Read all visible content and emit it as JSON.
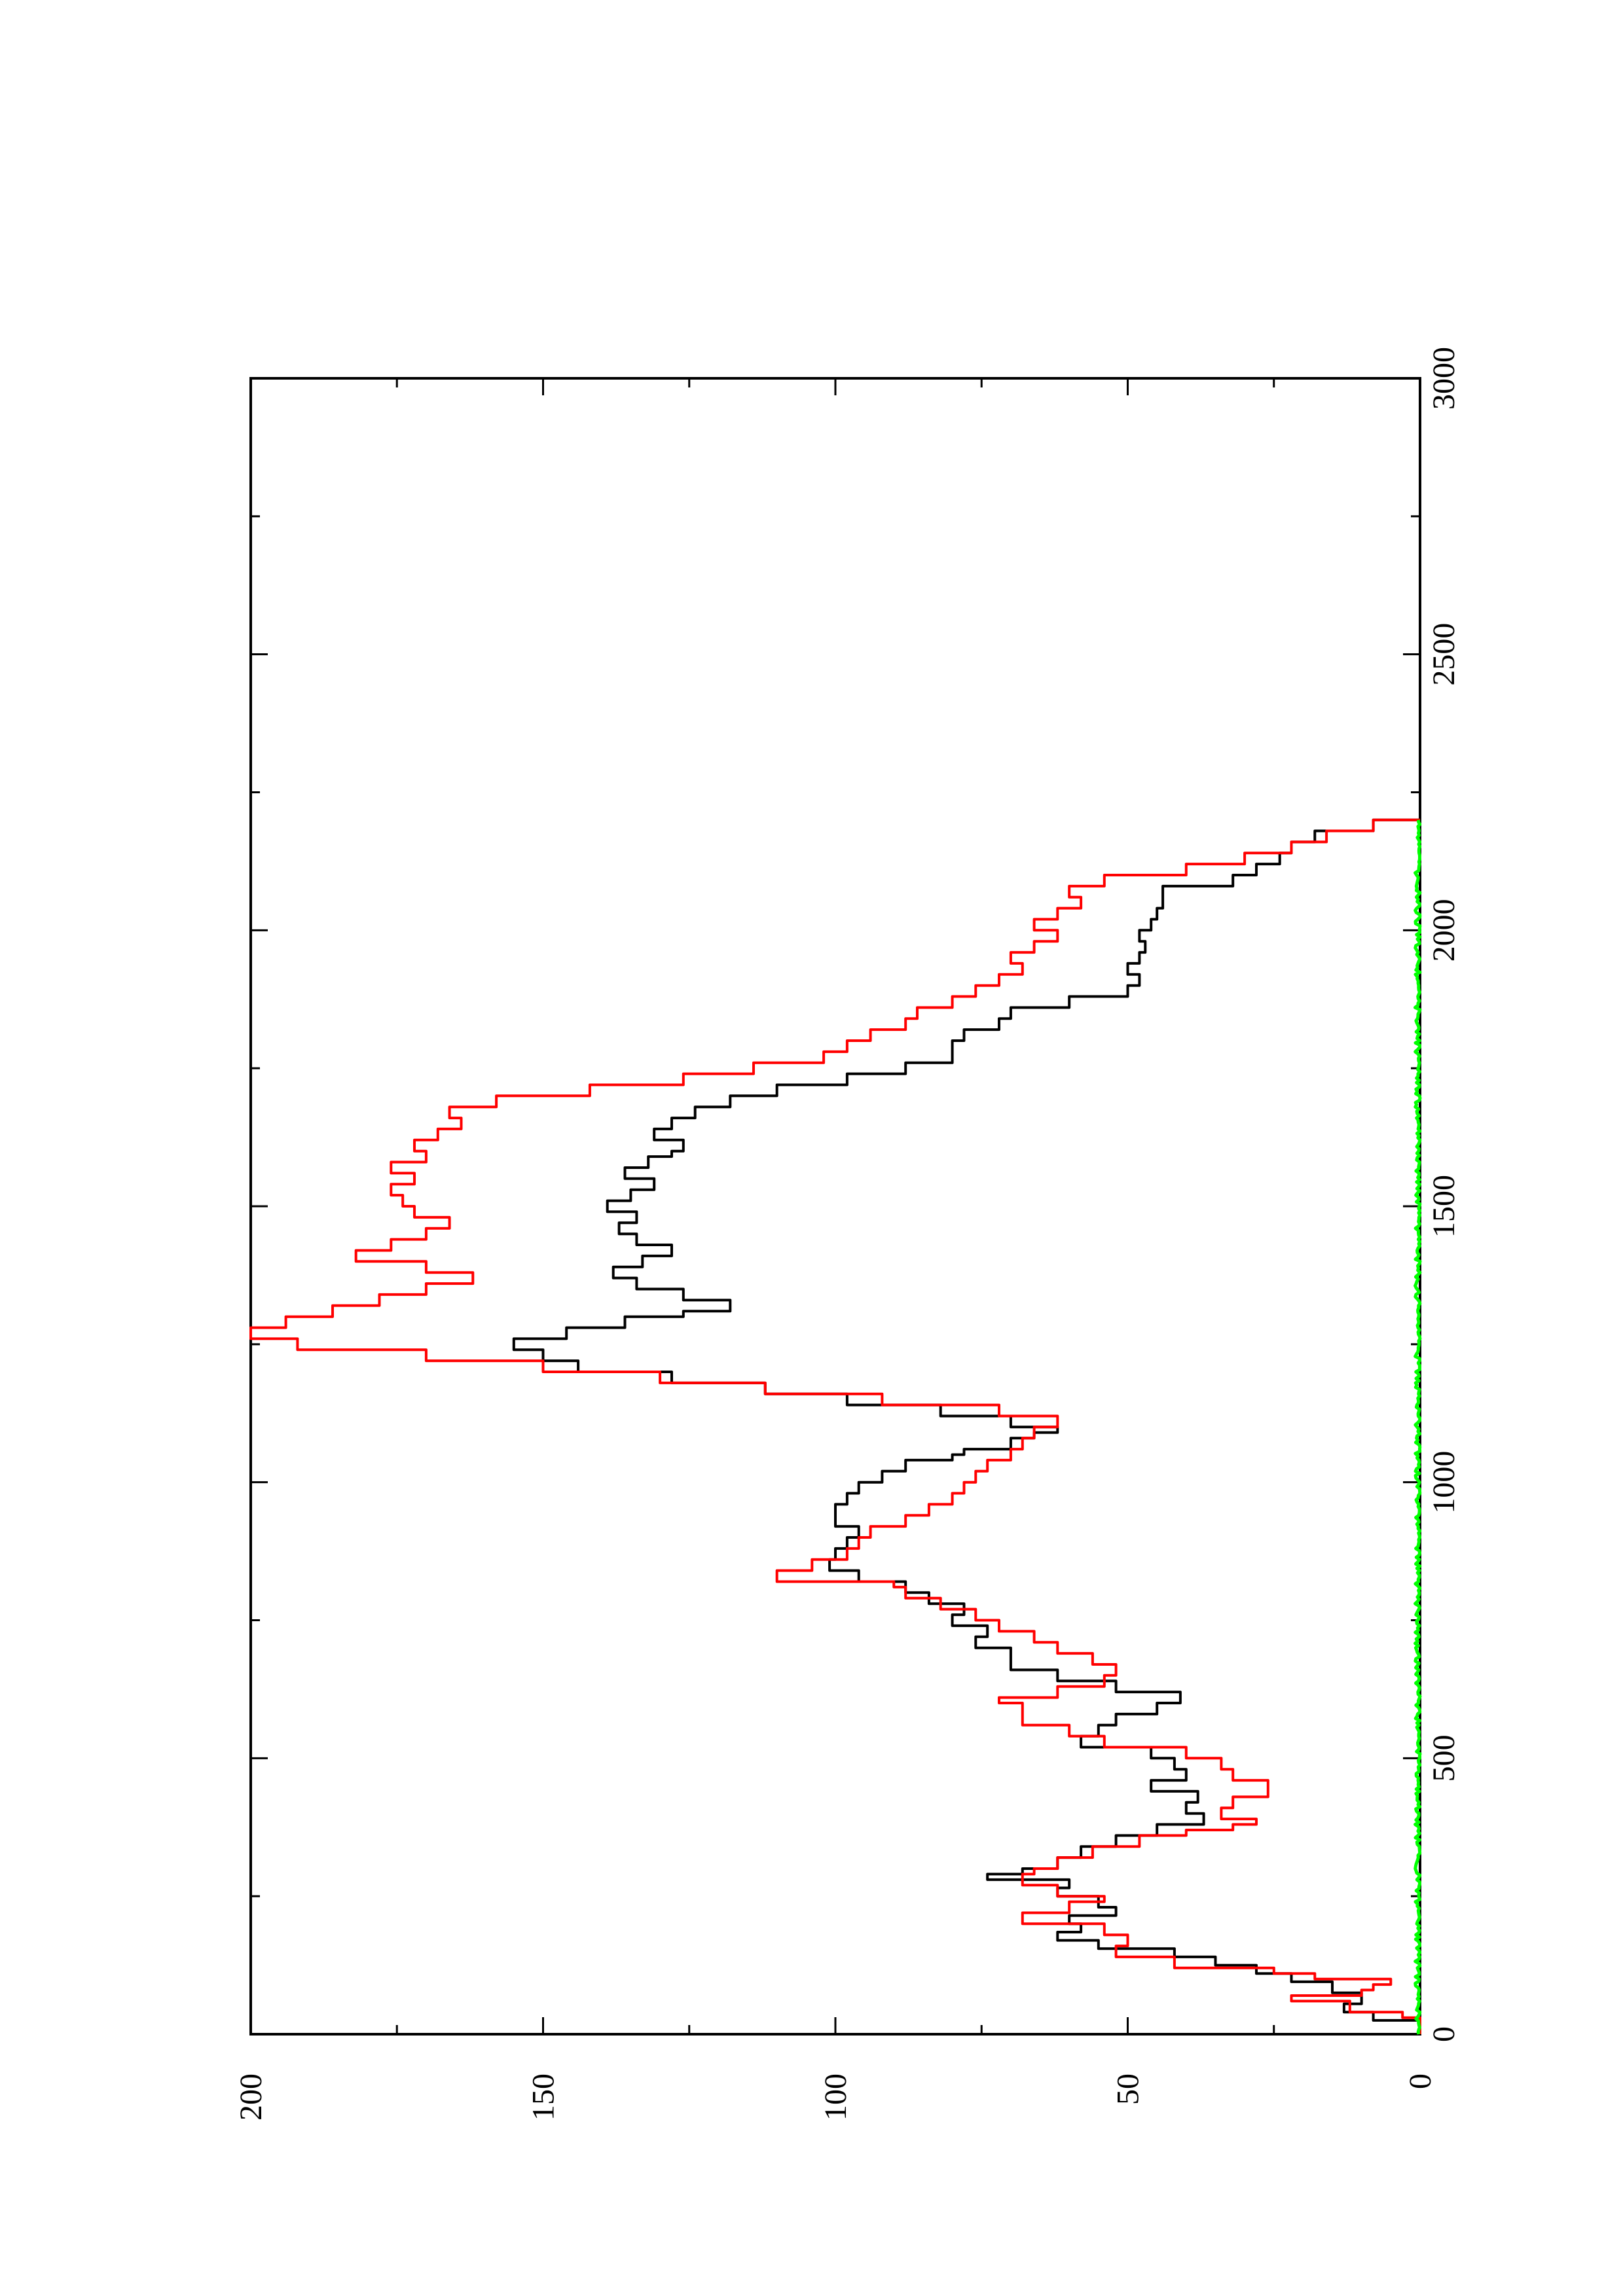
{
  "chart_data": {
    "type": "line",
    "orientation": "rotated-90-ccw",
    "title": "",
    "xlabel": "",
    "ylabel": "",
    "xlim": [
      0,
      3000
    ],
    "ylim": [
      0,
      200
    ],
    "x_ticks": [
      0,
      500,
      1000,
      1500,
      2000,
      2500,
      3000
    ],
    "x_tick_labels": [
      "0",
      "500",
      "1000",
      "1500",
      "2000",
      "2500",
      "3000"
    ],
    "y_ticks": [
      0,
      50,
      100,
      150,
      200
    ],
    "y_tick_labels": [
      "0",
      "50",
      "100",
      "150",
      "200"
    ],
    "grid": false,
    "legend": "none",
    "series": [
      {
        "color": "#000000",
        "points": [
          [
            0,
            0
          ],
          [
            25,
            8
          ],
          [
            40,
            13
          ],
          [
            55,
            10
          ],
          [
            75,
            15
          ],
          [
            95,
            22
          ],
          [
            110,
            28
          ],
          [
            125,
            35
          ],
          [
            140,
            42
          ],
          [
            155,
            55
          ],
          [
            170,
            62
          ],
          [
            185,
            58
          ],
          [
            200,
            60
          ],
          [
            215,
            52
          ],
          [
            230,
            55
          ],
          [
            250,
            62
          ],
          [
            265,
            60
          ],
          [
            280,
            74
          ],
          [
            290,
            68
          ],
          [
            300,
            62
          ],
          [
            320,
            58
          ],
          [
            340,
            52
          ],
          [
            360,
            45
          ],
          [
            380,
            37
          ],
          [
            400,
            40
          ],
          [
            420,
            38
          ],
          [
            440,
            46
          ],
          [
            460,
            40
          ],
          [
            480,
            42
          ],
          [
            500,
            46
          ],
          [
            520,
            58
          ],
          [
            540,
            55
          ],
          [
            560,
            52
          ],
          [
            580,
            45
          ],
          [
            600,
            41
          ],
          [
            620,
            52
          ],
          [
            640,
            62
          ],
          [
            660,
            70
          ],
          [
            680,
            70
          ],
          [
            700,
            76
          ],
          [
            720,
            74
          ],
          [
            740,
            80
          ],
          [
            760,
            78
          ],
          [
            780,
            84
          ],
          [
            800,
            88
          ],
          [
            820,
            96
          ],
          [
            840,
            101
          ],
          [
            860,
            100
          ],
          [
            880,
            98
          ],
          [
            900,
            96
          ],
          [
            920,
            100
          ],
          [
            940,
            100
          ],
          [
            960,
            98
          ],
          [
            980,
            96
          ],
          [
            1000,
            92
          ],
          [
            1020,
            88
          ],
          [
            1040,
            80
          ],
          [
            1050,
            78
          ],
          [
            1060,
            70
          ],
          [
            1080,
            66
          ],
          [
            1090,
            62
          ],
          [
            1100,
            70
          ],
          [
            1120,
            82
          ],
          [
            1140,
            98
          ],
          [
            1160,
            112
          ],
          [
            1180,
            128
          ],
          [
            1200,
            144
          ],
          [
            1220,
            150
          ],
          [
            1240,
            155
          ],
          [
            1260,
            146
          ],
          [
            1280,
            136
          ],
          [
            1300,
            126
          ],
          [
            1310,
            118
          ],
          [
            1330,
            126
          ],
          [
            1350,
            134
          ],
          [
            1370,
            138
          ],
          [
            1390,
            133
          ],
          [
            1410,
            128
          ],
          [
            1430,
            134
          ],
          [
            1450,
            137
          ],
          [
            1470,
            134
          ],
          [
            1490,
            139
          ],
          [
            1510,
            135
          ],
          [
            1530,
            131
          ],
          [
            1550,
            136
          ],
          [
            1570,
            132
          ],
          [
            1590,
            128
          ],
          [
            1600,
            126
          ],
          [
            1620,
            131
          ],
          [
            1640,
            128
          ],
          [
            1660,
            124
          ],
          [
            1680,
            118
          ],
          [
            1700,
            110
          ],
          [
            1720,
            98
          ],
          [
            1740,
            88
          ],
          [
            1760,
            80
          ],
          [
            1780,
            80
          ],
          [
            1800,
            78
          ],
          [
            1820,
            72
          ],
          [
            1840,
            70
          ],
          [
            1860,
            60
          ],
          [
            1880,
            50
          ],
          [
            1900,
            48
          ],
          [
            1920,
            50
          ],
          [
            1940,
            48
          ],
          [
            1960,
            47
          ],
          [
            1980,
            48
          ],
          [
            2000,
            46
          ],
          [
            2020,
            45
          ],
          [
            2040,
            44
          ],
          [
            2060,
            44
          ],
          [
            2080,
            32
          ],
          [
            2100,
            28
          ],
          [
            2120,
            24
          ],
          [
            2140,
            22
          ],
          [
            2160,
            18
          ],
          [
            2180,
            8
          ],
          [
            2200,
            0
          ]
        ]
      },
      {
        "color": "#ff0000",
        "points": [
          [
            0,
            0
          ],
          [
            30,
            3
          ],
          [
            40,
            12
          ],
          [
            60,
            22
          ],
          [
            70,
            10
          ],
          [
            80,
            8
          ],
          [
            90,
            5
          ],
          [
            100,
            18
          ],
          [
            110,
            25
          ],
          [
            120,
            42
          ],
          [
            140,
            52
          ],
          [
            160,
            50
          ],
          [
            180,
            54
          ],
          [
            200,
            68
          ],
          [
            220,
            60
          ],
          [
            240,
            54
          ],
          [
            250,
            62
          ],
          [
            270,
            68
          ],
          [
            290,
            66
          ],
          [
            300,
            62
          ],
          [
            320,
            56
          ],
          [
            340,
            48
          ],
          [
            360,
            40
          ],
          [
            370,
            32
          ],
          [
            380,
            28
          ],
          [
            390,
            34
          ],
          [
            410,
            32
          ],
          [
            430,
            26
          ],
          [
            460,
            32
          ],
          [
            480,
            34
          ],
          [
            500,
            40
          ],
          [
            520,
            54
          ],
          [
            540,
            60
          ],
          [
            560,
            68
          ],
          [
            600,
            72
          ],
          [
            610,
            62
          ],
          [
            630,
            54
          ],
          [
            650,
            52
          ],
          [
            670,
            56
          ],
          [
            690,
            62
          ],
          [
            710,
            66
          ],
          [
            730,
            72
          ],
          [
            750,
            76
          ],
          [
            770,
            82
          ],
          [
            790,
            88
          ],
          [
            810,
            90
          ],
          [
            820,
            110
          ],
          [
            840,
            104
          ],
          [
            860,
            98
          ],
          [
            880,
            96
          ],
          [
            900,
            94
          ],
          [
            920,
            88
          ],
          [
            940,
            84
          ],
          [
            960,
            80
          ],
          [
            980,
            78
          ],
          [
            1000,
            76
          ],
          [
            1020,
            74
          ],
          [
            1040,
            70
          ],
          [
            1060,
            68
          ],
          [
            1080,
            66
          ],
          [
            1100,
            62
          ],
          [
            1120,
            72
          ],
          [
            1140,
            92
          ],
          [
            1160,
            112
          ],
          [
            1180,
            130
          ],
          [
            1200,
            150
          ],
          [
            1220,
            170
          ],
          [
            1240,
            192
          ],
          [
            1260,
            200
          ],
          [
            1280,
            194
          ],
          [
            1300,
            186
          ],
          [
            1320,
            178
          ],
          [
            1340,
            170
          ],
          [
            1360,
            162
          ],
          [
            1380,
            170
          ],
          [
            1400,
            182
          ],
          [
            1420,
            176
          ],
          [
            1440,
            170
          ],
          [
            1460,
            166
          ],
          [
            1480,
            172
          ],
          [
            1500,
            174
          ],
          [
            1520,
            176
          ],
          [
            1540,
            172
          ],
          [
            1560,
            176
          ],
          [
            1580,
            170
          ],
          [
            1600,
            172
          ],
          [
            1620,
            168
          ],
          [
            1640,
            164
          ],
          [
            1660,
            166
          ],
          [
            1680,
            158
          ],
          [
            1700,
            142
          ],
          [
            1720,
            126
          ],
          [
            1740,
            114
          ],
          [
            1760,
            102
          ],
          [
            1780,
            98
          ],
          [
            1800,
            94
          ],
          [
            1820,
            88
          ],
          [
            1840,
            86
          ],
          [
            1860,
            80
          ],
          [
            1880,
            76
          ],
          [
            1900,
            72
          ],
          [
            1920,
            68
          ],
          [
            1940,
            70
          ],
          [
            1960,
            66
          ],
          [
            1980,
            62
          ],
          [
            2000,
            66
          ],
          [
            2020,
            62
          ],
          [
            2040,
            58
          ],
          [
            2060,
            60
          ],
          [
            2080,
            54
          ],
          [
            2100,
            40
          ],
          [
            2120,
            30
          ],
          [
            2140,
            22
          ],
          [
            2160,
            16
          ],
          [
            2180,
            8
          ],
          [
            2200,
            0
          ]
        ]
      },
      {
        "color": "#00ff00",
        "points": [
          [
            0,
            0
          ],
          [
            2200,
            0
          ]
        ],
        "noise_amplitude": 1.2
      }
    ]
  }
}
